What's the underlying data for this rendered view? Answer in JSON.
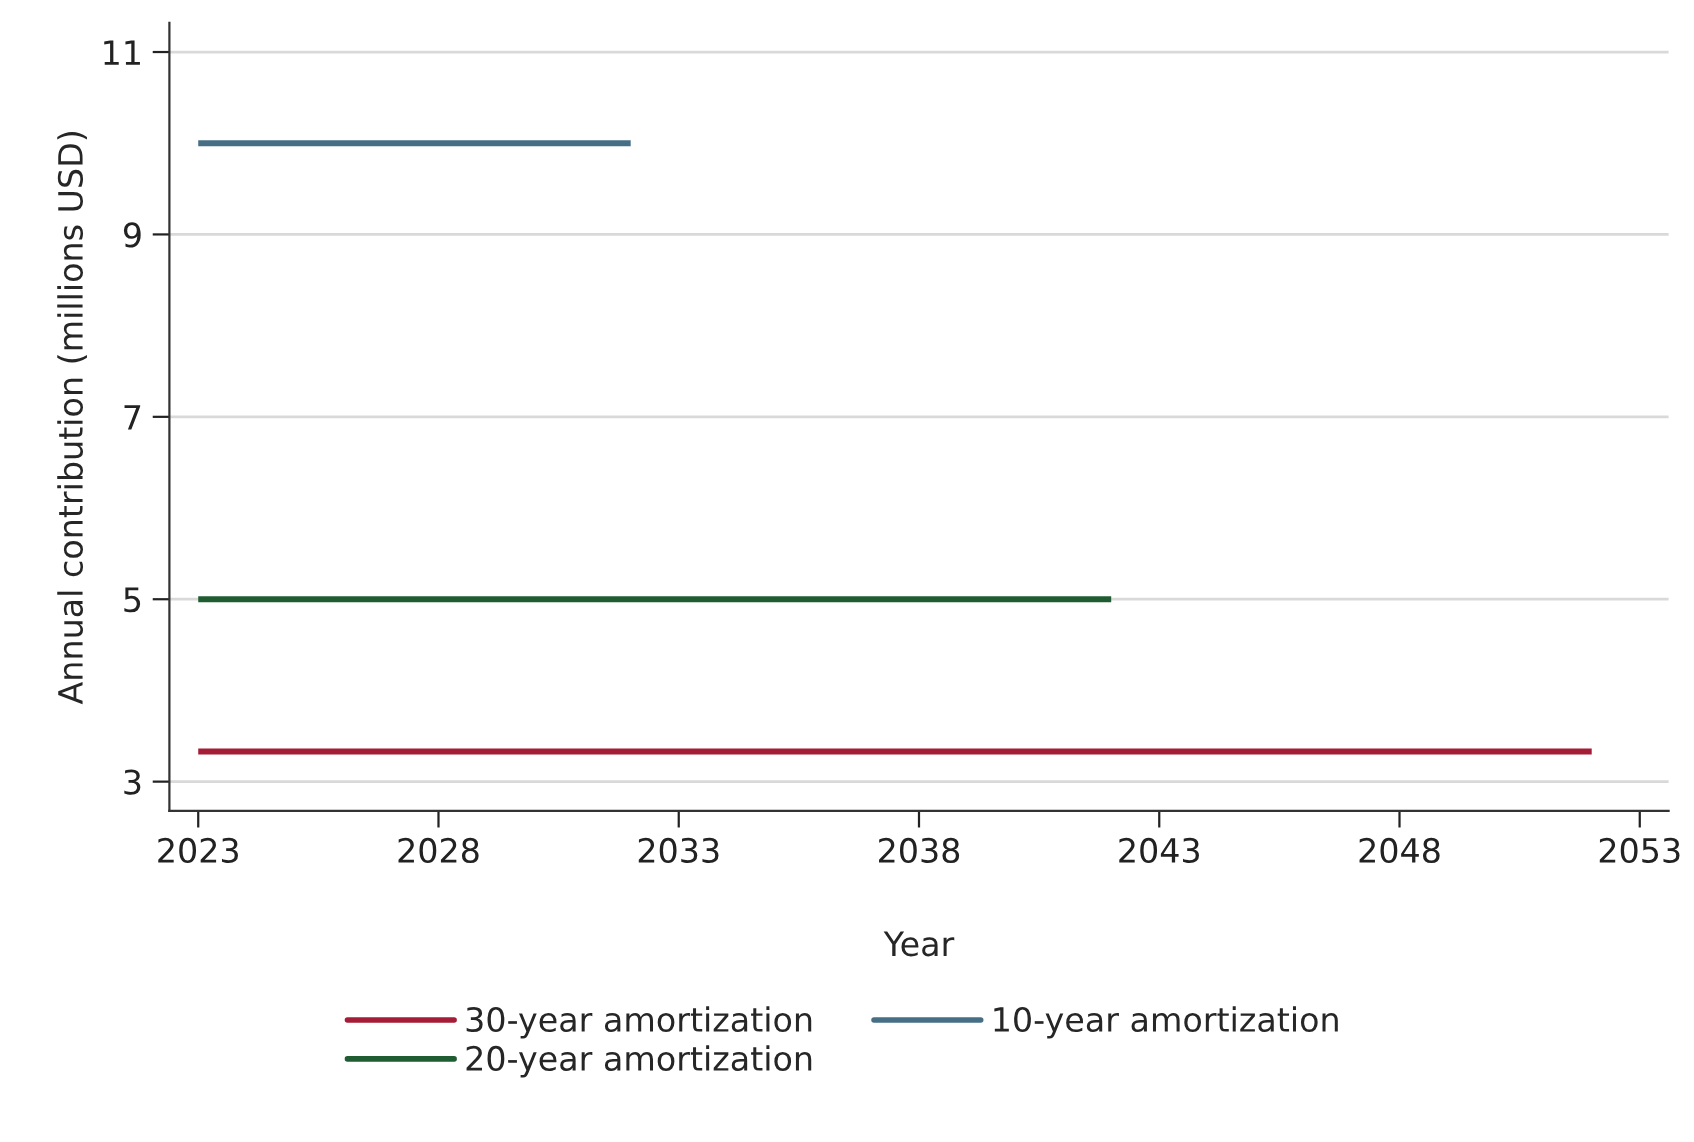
{
  "chart_data": {
    "type": "line",
    "xlabel": "Year",
    "ylabel": "Annual contribution (millions USD)",
    "series": [
      {
        "name": "30-year amortization",
        "color": "#a51c36",
        "x": [
          2023,
          2052
        ],
        "values": [
          3.33,
          3.33
        ]
      },
      {
        "name": "20-year amortization",
        "color": "#1f5c32",
        "x": [
          2023,
          2042
        ],
        "values": [
          5,
          5
        ]
      },
      {
        "name": "10-year amortization",
        "color": "#466f86",
        "x": [
          2023,
          2032
        ],
        "values": [
          10,
          10
        ]
      }
    ],
    "xlim": [
      2022.4,
      2053.6
    ],
    "xticks": [
      2023,
      2028,
      2033,
      2038,
      2043,
      2048,
      2053
    ],
    "ylim": [
      2.68,
      11.32
    ],
    "yticks": [
      3,
      5,
      7,
      9,
      11
    ],
    "grid": "y",
    "legend": "bottom",
    "line_style": "solid",
    "marker": "none"
  }
}
